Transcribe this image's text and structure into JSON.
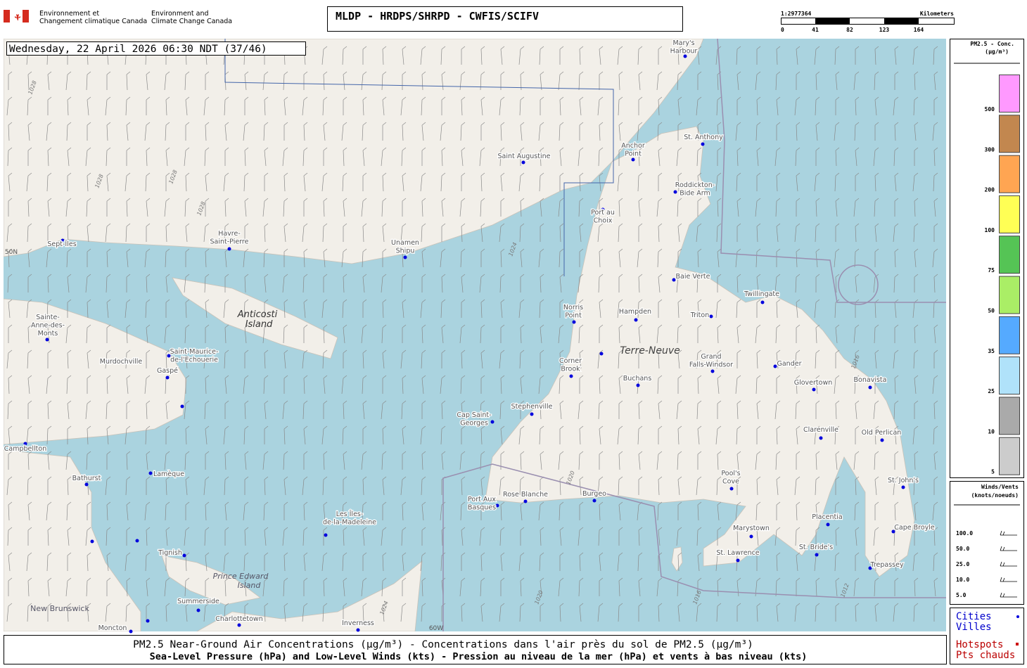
{
  "header": {
    "agency_fr": [
      "Environnement et",
      "Changement climatique Canada"
    ],
    "agency_en": [
      "Environment and",
      "Climate Change Canada"
    ],
    "title": "MLDP - HRDPS/SHRPD - CWFIS/SCIFV"
  },
  "scale": {
    "ratio": "1:2977364",
    "unit": "Kilometers",
    "ticks": [
      "0",
      "41",
      "82",
      "123",
      "164"
    ]
  },
  "map": {
    "timestamp": "Wednesday, 22 April 2026 06:30 NDT (37/46)",
    "places": [
      "Anticosti",
      "Island",
      "Terre-Neuve",
      "Prince Edward",
      "Island",
      "New Brunswick",
      "50N",
      "60W"
    ],
    "isobars": [
      "1028",
      "1028",
      "1028",
      "1028",
      "1024",
      "1024",
      "1020",
      "1020",
      "1016",
      "1016",
      "1012"
    ],
    "cities": [
      {
        "label": [
          "Sept-Îles"
        ]
      },
      {
        "label": [
          "Havre-",
          "Saint-Pierre"
        ]
      },
      {
        "label": [
          "Unamen",
          "Shipu"
        ]
      },
      {
        "label": [
          "Saint Augustine"
        ]
      },
      {
        "label": [
          "Mary's",
          "Harbour"
        ]
      },
      {
        "label": [
          "Anchor",
          "Point"
        ]
      },
      {
        "label": [
          "St. Anthony"
        ]
      },
      {
        "label": [
          "Roddickton-",
          "Bide Arm"
        ]
      },
      {
        "label": [
          "Port au",
          "Choix"
        ]
      },
      {
        "label": [
          "Baie Verte"
        ]
      },
      {
        "label": [
          "Twillingate"
        ]
      },
      {
        "label": [
          "Norris",
          "Point"
        ]
      },
      {
        "label": [
          "Hampden"
        ]
      },
      {
        "label": [
          "Triton"
        ]
      },
      {
        "label": [
          "Corner",
          "Brook"
        ]
      },
      {
        "label": [
          "Grand",
          "Falls-Windsor"
        ]
      },
      {
        "label": [
          "Gander"
        ]
      },
      {
        "label": [
          "Buchans"
        ]
      },
      {
        "label": [
          "Glovertown"
        ]
      },
      {
        "label": [
          "Bonavista"
        ]
      },
      {
        "label": [
          "Stephenville"
        ]
      },
      {
        "label": [
          "Cap Saint-",
          "Georges"
        ]
      },
      {
        "label": [
          "Clarenville"
        ]
      },
      {
        "label": [
          "Old Perlican"
        ]
      },
      {
        "label": [
          "Pool's",
          "Cove"
        ]
      },
      {
        "label": [
          "St. John's"
        ]
      },
      {
        "label": [
          "Port Aux",
          "Basques"
        ]
      },
      {
        "label": [
          "Rose Blanche"
        ]
      },
      {
        "label": [
          "Burgeo"
        ]
      },
      {
        "label": [
          "Placentia"
        ]
      },
      {
        "label": [
          "Marystown"
        ]
      },
      {
        "label": [
          "Cape Broyle"
        ]
      },
      {
        "label": [
          "St. Bride's"
        ]
      },
      {
        "label": [
          "St. Lawrence"
        ]
      },
      {
        "label": [
          "Trepassey"
        ]
      },
      {
        "label": [
          "Sainte-",
          "Anne-des-",
          "Monts"
        ]
      },
      {
        "label": [
          "Murdochville"
        ]
      },
      {
        "label": [
          "Saint-Maurice-",
          "de-l'Echouerie"
        ]
      },
      {
        "label": [
          "Gaspé"
        ]
      },
      {
        "label": [
          "Campbellton"
        ]
      },
      {
        "label": [
          "Bathurst"
        ]
      },
      {
        "label": [
          "Lamèque"
        ]
      },
      {
        "label": [
          "Les Îles-",
          "de-la-Madeleine"
        ]
      },
      {
        "label": [
          "Tignish"
        ]
      },
      {
        "label": [
          "Summerside"
        ]
      },
      {
        "label": [
          "Charlottetown"
        ]
      },
      {
        "label": [
          "Inverness"
        ]
      },
      {
        "label": [
          "Moncton"
        ]
      }
    ]
  },
  "legend": {
    "title": [
      "PM2.5 - Conc.",
      "(µg/m³)"
    ],
    "levels": [
      {
        "label": "500",
        "color": "#ff99ff"
      },
      {
        "label": "300",
        "color": "#c2874f"
      },
      {
        "label": "200",
        "color": "#ffa552"
      },
      {
        "label": "100",
        "color": "#ffff55"
      },
      {
        "label": "75",
        "color": "#55c455"
      },
      {
        "label": "50",
        "color": "#aaee66"
      },
      {
        "label": "35",
        "color": "#55aaff"
      },
      {
        "label": "25",
        "color": "#b0e2fa"
      },
      {
        "label": "10",
        "color": "#aaaaaa"
      },
      {
        "label": "5",
        "color": "#cccccc"
      }
    ],
    "wind_title": [
      "Winds/Vents",
      "(knots/noeuds)"
    ],
    "wind_levels": [
      "100.0",
      "50.0",
      "25.0",
      "10.0",
      "5.0"
    ],
    "cities": [
      "Cities",
      "Villes"
    ],
    "hotspots": [
      "Hotspots",
      "Pts chauds"
    ]
  },
  "footer": [
    "PM2.5 Near-Ground Air Concentrations (µg/m³) - Concentrations dans l'air près du sol de PM2.5 (µg/m³)",
    "Sea-Level Pressure (hPa) and Low-Level Winds (kts) - Pression au niveau de la mer (hPa) et vents à bas niveau (kts)"
  ]
}
